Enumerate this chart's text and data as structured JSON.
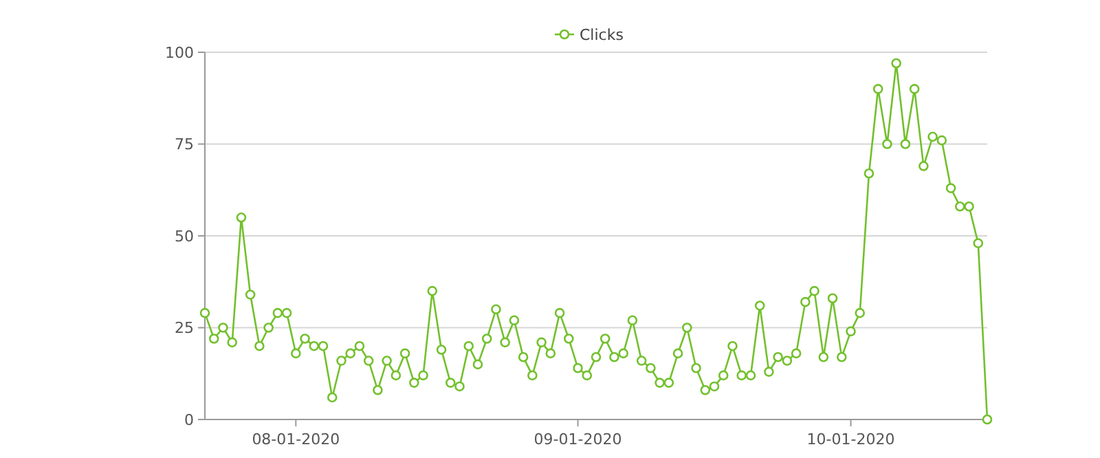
{
  "chart_data": {
    "type": "line",
    "legend": "top",
    "grid": "y",
    "marker": "circle",
    "line_style": "solid",
    "x": [
      "2020-07-22",
      "2020-07-23",
      "2020-07-24",
      "2020-07-25",
      "2020-07-26",
      "2020-07-27",
      "2020-07-28",
      "2020-07-29",
      "2020-07-30",
      "2020-07-31",
      "2020-08-01",
      "2020-08-02",
      "2020-08-03",
      "2020-08-04",
      "2020-08-05",
      "2020-08-06",
      "2020-08-07",
      "2020-08-08",
      "2020-08-09",
      "2020-08-10",
      "2020-08-11",
      "2020-08-12",
      "2020-08-13",
      "2020-08-14",
      "2020-08-15",
      "2020-08-16",
      "2020-08-17",
      "2020-08-18",
      "2020-08-19",
      "2020-08-20",
      "2020-08-21",
      "2020-08-22",
      "2020-08-23",
      "2020-08-24",
      "2020-08-25",
      "2020-08-26",
      "2020-08-27",
      "2020-08-28",
      "2020-08-29",
      "2020-08-30",
      "2020-08-31",
      "2020-09-01",
      "2020-09-02",
      "2020-09-03",
      "2020-09-04",
      "2020-09-05",
      "2020-09-06",
      "2020-09-07",
      "2020-09-08",
      "2020-09-09",
      "2020-09-10",
      "2020-09-11",
      "2020-09-12",
      "2020-09-13",
      "2020-09-14",
      "2020-09-15",
      "2020-09-16",
      "2020-09-17",
      "2020-09-18",
      "2020-09-19",
      "2020-09-20",
      "2020-09-21",
      "2020-09-22",
      "2020-09-23",
      "2020-09-24",
      "2020-09-25",
      "2020-09-26",
      "2020-09-27",
      "2020-09-28",
      "2020-09-29",
      "2020-09-30",
      "2020-10-01",
      "2020-10-02",
      "2020-10-03",
      "2020-10-04",
      "2020-10-05",
      "2020-10-06",
      "2020-10-07",
      "2020-10-08",
      "2020-10-09",
      "2020-10-10",
      "2020-10-11",
      "2020-10-12",
      "2020-10-13",
      "2020-10-14",
      "2020-10-15",
      "2020-10-16"
    ],
    "series": [
      {
        "name": "Clicks",
        "color": "#72c02c",
        "values": [
          29,
          22,
          25,
          21,
          55,
          34,
          20,
          25,
          29,
          29,
          18,
          22,
          20,
          20,
          6,
          16,
          18,
          20,
          16,
          8,
          16,
          12,
          18,
          10,
          12,
          35,
          19,
          10,
          9,
          20,
          15,
          22,
          30,
          21,
          27,
          17,
          12,
          21,
          18,
          29,
          22,
          14,
          12,
          17,
          22,
          17,
          18,
          27,
          16,
          14,
          10,
          10,
          18,
          25,
          14,
          8,
          9,
          12,
          20,
          12,
          12,
          31,
          13,
          17,
          16,
          18,
          32,
          35,
          17,
          33,
          17,
          24,
          29,
          67,
          90,
          75,
          97,
          75,
          90,
          69,
          77,
          76,
          63,
          58,
          58,
          48,
          0
        ]
      }
    ],
    "xlim": [
      "2020-07-22",
      "2020-10-16"
    ],
    "xticks": [
      {
        "value": "2020-08-01",
        "label": "08-01-2020"
      },
      {
        "value": "2020-09-01",
        "label": "09-01-2020"
      },
      {
        "value": "2020-10-01",
        "label": "10-01-2020"
      }
    ],
    "ylim": [
      0,
      100
    ],
    "yticks": [
      0,
      25,
      50,
      75,
      100
    ]
  }
}
